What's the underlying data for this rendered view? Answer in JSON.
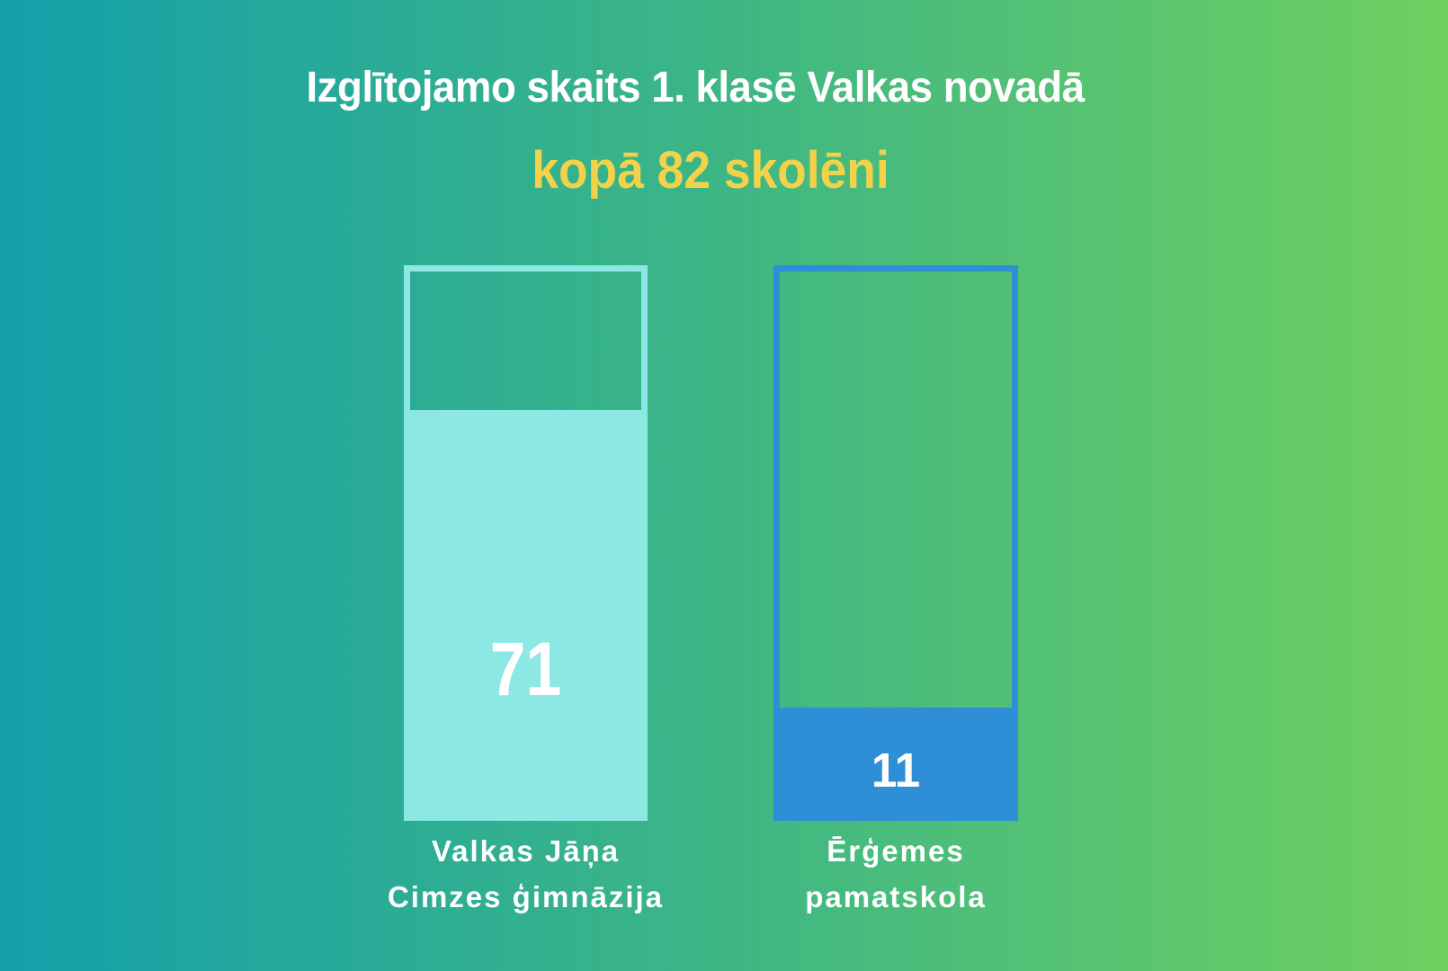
{
  "chart_data": {
    "type": "bar",
    "title": "Izglītojamo skaits 1. klasē Valkas novadā",
    "subtitle": "kopā 82 skolēni",
    "total_students": 82,
    "categories": [
      "Valkas Jāņa Cimzes ģimnāzija",
      "Ērģemes pamatskola"
    ],
    "values": [
      71,
      11
    ],
    "xlabel": "",
    "ylabel": "",
    "legend": "none",
    "gridlines": false,
    "axes_shown": false,
    "layout": "two vertical outlined bars, partially filled, value labels inside fills, category labels below bars"
  },
  "bars": [
    {
      "name": "Valkas Jāņa Cimzes ģimnāzija",
      "value": "71",
      "label_lines": [
        "Valkas Jāņa",
        "Cimzes ģimnāzija"
      ],
      "fill_color": "#8BE8E3"
    },
    {
      "name": "Ērģemes pamatskola",
      "value": "11",
      "label_lines": [
        "Ērģemes",
        "pamatskola"
      ],
      "fill_color": "#2E8FD6"
    }
  ],
  "colors": {
    "background_gradient_left": "#14A0AA",
    "background_gradient_right": "#6FD05F",
    "title_text": "#FFFFFF",
    "subtitle_text": "#F2D24B",
    "bar1_outline_fill": "#8BE8E3",
    "bar2_outline_fill": "#2E8FD6",
    "value_text": "#FFFFFF",
    "label_text": "#FFFFFF"
  }
}
